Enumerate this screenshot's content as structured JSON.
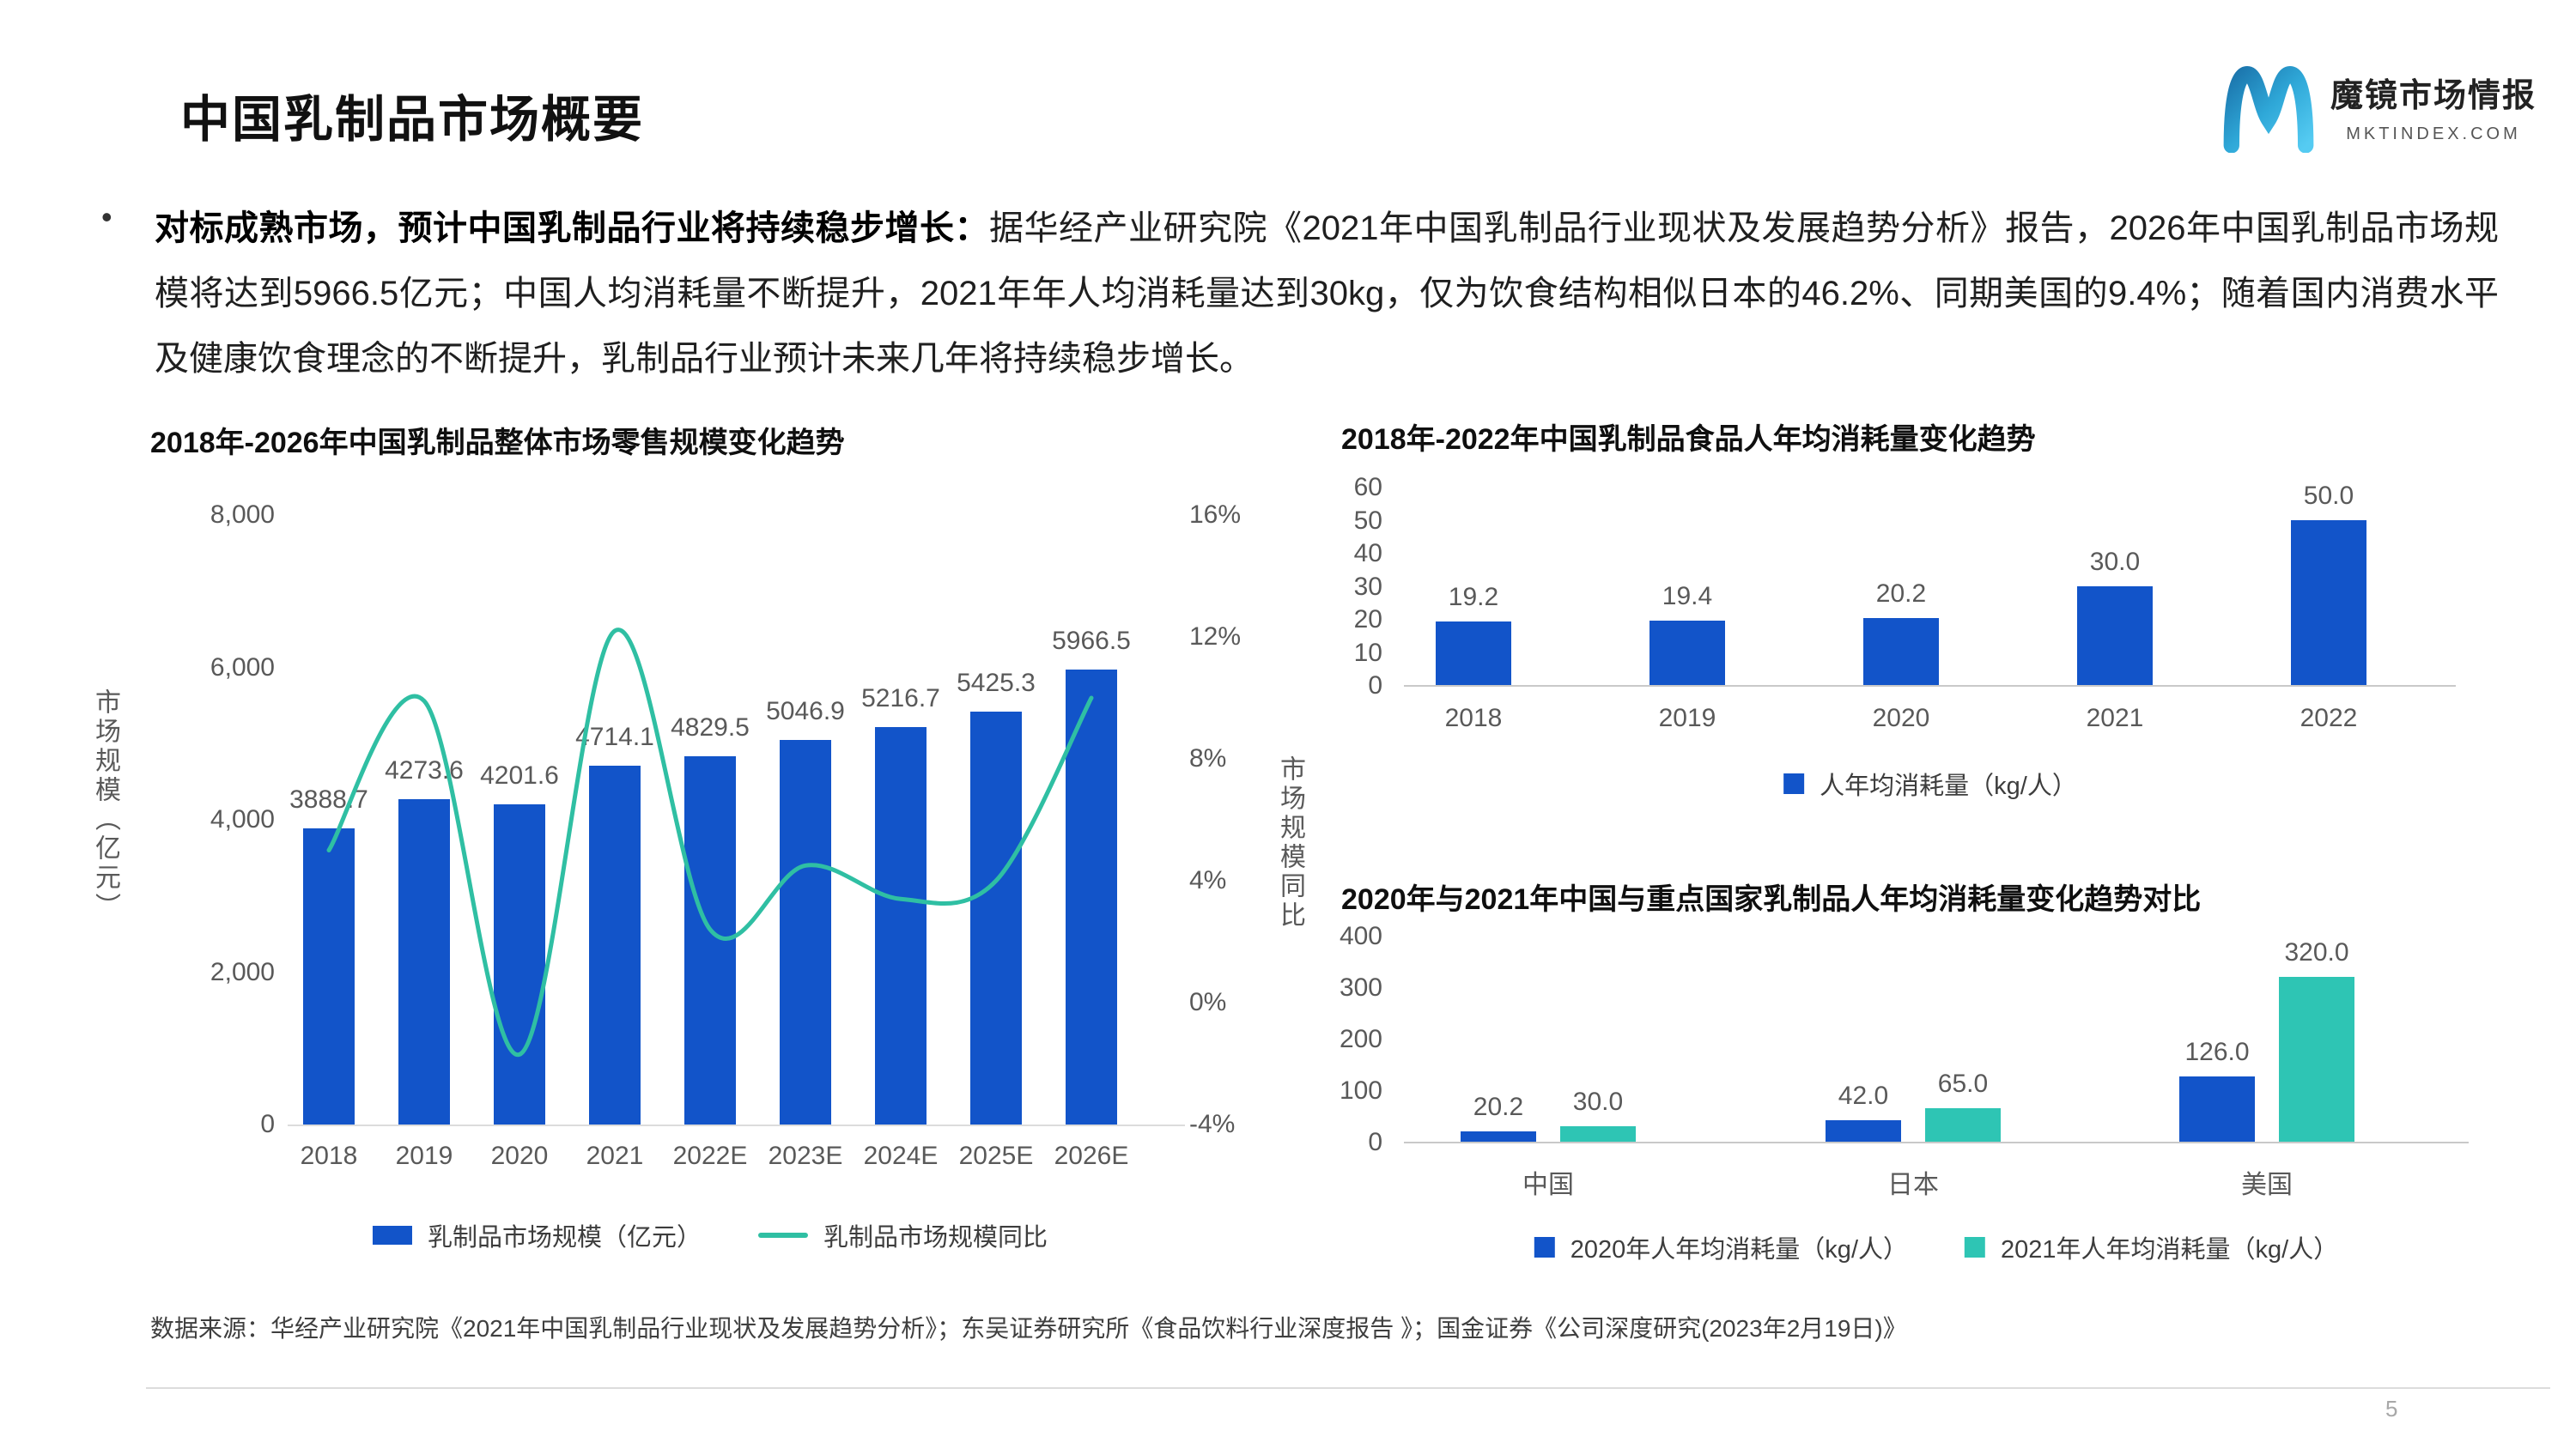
{
  "page": {
    "title": "中国乳制品市场概要",
    "page_number": "5",
    "logo": {
      "brand": "魔镜市场情报",
      "domain": "MKTINDEX.COM"
    },
    "bullet": {
      "lead": "对标成熟市场，预计中国乳制品行业将持续稳步增长：",
      "body": "据华经产业研究院《2021年中国乳制品行业现状及发展趋势分析》报告，2026年中国乳制品市场规模将达到5966.5亿元；中国人均消耗量不断提升，2021年年人均消耗量达到30kg，仅为饮食结构相似日本的46.2%、同期美国的9.4%；随着国内消费水平及健康饮食理念的不断提升，乳制品行业预计未来几年将持续稳步增长。"
    },
    "source": "数据来源：华经产业研究院《2021年中国乳制品行业现状及发展趋势分析》；东吴证券研究所《食品饮料行业深度报告 》；国金证券《公司深度研究(2023年2月19日)》"
  },
  "colors": {
    "bar_blue": "#1254C9",
    "line_teal": "#2FBFA3",
    "bar_teal": "#2EC5B4",
    "logo_blue_dark": "#1B74AC",
    "logo_blue_light": "#55CBF2"
  },
  "chart_data": [
    {
      "type": "combo_bar_line",
      "title": "2018年-2026年中国乳制品整体市场零售规模变化趋势",
      "categories": [
        "2018",
        "2019",
        "2020",
        "2021",
        "2022E",
        "2023E",
        "2024E",
        "2025E",
        "2026E"
      ],
      "bar_series": {
        "name": "乳制品市场规模（亿元）",
        "values": [
          3888.7,
          4273.6,
          4201.6,
          4714.1,
          4829.5,
          5046.9,
          5216.7,
          5425.3,
          5966.5
        ]
      },
      "line_series": {
        "name": "乳制品市场规模同比",
        "yoy_pct": [
          5.0,
          9.9,
          -1.7,
          12.2,
          2.4,
          4.5,
          3.4,
          4.0,
          10.0
        ]
      },
      "y_left": {
        "label": "市场规模（亿元）",
        "ticks": [
          "8,000",
          "6,000",
          "4,000",
          "2,000",
          "0"
        ],
        "min": 0,
        "max": 8000
      },
      "y_right": {
        "label": "市场规模同比",
        "ticks": [
          "16%",
          "12%",
          "8%",
          "4%",
          "0%",
          "-4%"
        ],
        "min": -4,
        "max": 16
      },
      "legend_position": "bottom",
      "grid": false
    },
    {
      "type": "bar",
      "title": "2018年-2022年中国乳制品食品人年均消耗量变化趋势",
      "categories": [
        "2018",
        "2019",
        "2020",
        "2021",
        "2022"
      ],
      "series": [
        {
          "name": "人年均消耗量（kg/人）",
          "values": [
            19.2,
            19.4,
            20.2,
            30.0,
            50.0
          ],
          "color_key": "bar_blue"
        }
      ],
      "ylim": [
        0,
        60
      ],
      "yticks": [
        "60",
        "50",
        "40",
        "30",
        "20",
        "10",
        "0"
      ],
      "legend_position": "bottom",
      "grid": false
    },
    {
      "type": "grouped_bar",
      "title": "2020年与2021年中国与重点国家乳制品人年均消耗量变化趋势对比",
      "categories": [
        "中国",
        "日本",
        "美国"
      ],
      "series": [
        {
          "name": "2020年人年均消耗量（kg/人）",
          "values": [
            20.2,
            42.0,
            126.0
          ],
          "color_key": "bar_blue"
        },
        {
          "name": "2021年人年均消耗量（kg/人）",
          "values": [
            30.0,
            65.0,
            320.0
          ],
          "color_key": "bar_teal"
        }
      ],
      "ylim": [
        0,
        400
      ],
      "yticks": [
        "400",
        "300",
        "200",
        "100",
        "0"
      ],
      "legend_position": "bottom",
      "grid": false
    }
  ]
}
